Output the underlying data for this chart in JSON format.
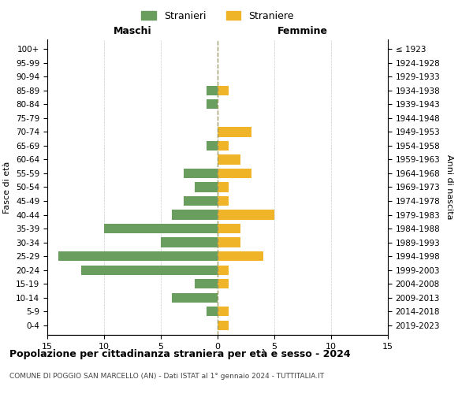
{
  "age_groups": [
    "100+",
    "95-99",
    "90-94",
    "85-89",
    "80-84",
    "75-79",
    "70-74",
    "65-69",
    "60-64",
    "55-59",
    "50-54",
    "45-49",
    "40-44",
    "35-39",
    "30-34",
    "25-29",
    "20-24",
    "15-19",
    "10-14",
    "5-9",
    "0-4"
  ],
  "birth_years": [
    "≤ 1923",
    "1924-1928",
    "1929-1933",
    "1934-1938",
    "1939-1943",
    "1944-1948",
    "1949-1953",
    "1954-1958",
    "1959-1963",
    "1964-1968",
    "1969-1973",
    "1974-1978",
    "1979-1983",
    "1984-1988",
    "1989-1993",
    "1994-1998",
    "1999-2003",
    "2004-2008",
    "2009-2013",
    "2014-2018",
    "2019-2023"
  ],
  "males": [
    0,
    0,
    0,
    1,
    1,
    0,
    0,
    1,
    0,
    3,
    2,
    3,
    4,
    10,
    5,
    14,
    12,
    2,
    4,
    1,
    0
  ],
  "females": [
    0,
    0,
    0,
    1,
    0,
    0,
    3,
    1,
    2,
    3,
    1,
    1,
    5,
    2,
    2,
    4,
    1,
    1,
    0,
    1,
    1
  ],
  "male_color": "#6a9e5e",
  "female_color": "#f0b429",
  "title": "Popolazione per cittadinanza straniera per età e sesso - 2024",
  "subtitle": "COMUNE DI POGGIO SAN MARCELLO (AN) - Dati ISTAT al 1° gennaio 2024 - TUTTITALIA.IT",
  "legend_male": "Stranieri",
  "legend_female": "Straniere",
  "xlabel_left": "Maschi",
  "xlabel_right": "Femmine",
  "ylabel_left": "Fasce di età",
  "ylabel_right": "Anni di nascita",
  "xlim": 15,
  "background_color": "#ffffff",
  "grid_color": "#cccccc"
}
